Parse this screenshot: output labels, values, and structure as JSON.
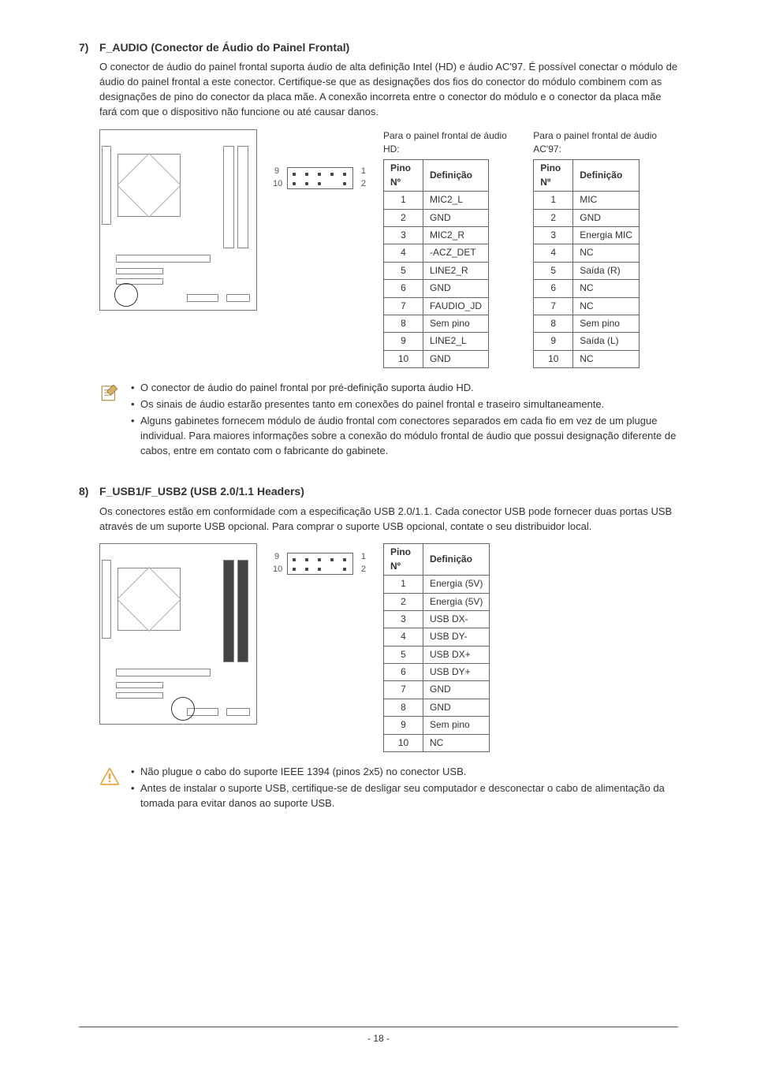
{
  "section7": {
    "number": "7)",
    "title": "F_AUDIO  (Conector de Áudio do Painel Frontal)",
    "paragraph": "O conector de áudio do painel frontal suporta áudio de alta definição Intel (HD) e áudio AC'97. É possível conectar o módulo de áudio do painel frontal a este conector. Certifique-se que as designações dos fios do conector do módulo combinem com as designações de pino do conector da placa mãe. A conexão incorreta entre o conector do módulo e o conector da placa mãe fará com que o dispositivo não funcione ou até causar danos.",
    "header_labels": {
      "tl": "9",
      "bl": "10",
      "tr": "1",
      "br": "2"
    },
    "hd_audio": {
      "title": "Para o painel frontal de áudio HD:",
      "col_pin": "Pino Nº",
      "col_def": "Definição",
      "rows": [
        [
          "1",
          "MIC2_L"
        ],
        [
          "2",
          "GND"
        ],
        [
          "3",
          "MIC2_R"
        ],
        [
          "4",
          "-ACZ_DET"
        ],
        [
          "5",
          "LINE2_R"
        ],
        [
          "6",
          "GND"
        ],
        [
          "7",
          "FAUDIO_JD"
        ],
        [
          "8",
          "Sem pino"
        ],
        [
          "9",
          "LINE2_L"
        ],
        [
          "10",
          "GND"
        ]
      ]
    },
    "ac97_audio": {
      "title": "Para o painel frontal de áudio AC'97:",
      "col_pin": "Pino Nº",
      "col_def": "Definição",
      "rows": [
        [
          "1",
          "MIC"
        ],
        [
          "2",
          "GND"
        ],
        [
          "3",
          "Energia MIC"
        ],
        [
          "4",
          "NC"
        ],
        [
          "5",
          "Saída (R)"
        ],
        [
          "6",
          "NC"
        ],
        [
          "7",
          "NC"
        ],
        [
          "8",
          "Sem pino"
        ],
        [
          "9",
          "Saída (L)"
        ],
        [
          "10",
          "NC"
        ]
      ]
    },
    "notes": [
      "O conector de áudio do painel frontal por pré-definição suporta áudio HD.",
      "Os sinais de áudio estarão presentes tanto em conexões do painel frontal e traseiro simultaneamente.",
      "Alguns gabinetes fornecem módulo de áudio frontal com conectores separados em cada fio em vez de um plugue individual. Para maiores informações sobre a conexão do módulo frontal de áudio que possui designação diferente de cabos, entre em contato com o fabricante do gabinete."
    ]
  },
  "section8": {
    "number": "8)",
    "title": "F_USB1/F_USB2 (USB 2.0/1.1 Headers)",
    "paragraph": "Os conectores estão em conformidade com a especificação USB 2.0/1.1. Cada conector USB pode fornecer duas portas USB através de um suporte USB opcional. Para comprar o suporte USB opcional, contate o seu distribuidor local.",
    "header_labels": {
      "tl": "9",
      "bl": "10",
      "tr": "1",
      "br": "2"
    },
    "table": {
      "col_pin": "Pino Nº",
      "col_def": "Definição",
      "rows": [
        [
          "1",
          "Energia (5V)"
        ],
        [
          "2",
          "Energia (5V)"
        ],
        [
          "3",
          "USB DX-"
        ],
        [
          "4",
          "USB DY-"
        ],
        [
          "5",
          "USB DX+"
        ],
        [
          "6",
          "USB DY+"
        ],
        [
          "7",
          "GND"
        ],
        [
          "8",
          "GND"
        ],
        [
          "9",
          "Sem pino"
        ],
        [
          "10",
          "NC"
        ]
      ]
    },
    "notes": [
      "Não plugue o cabo do suporte IEEE 1394 (pinos 2x5) no conector USB.",
      "Antes de instalar o suporte USB, certifique-se de desligar seu computador e desconectar o cabo de alimentação da tomada para evitar danos ao suporte USB."
    ]
  },
  "footer": {
    "page": "- 18 -"
  },
  "colors": {
    "text": "#333333",
    "border": "#666666",
    "diagram": "#888888",
    "warning": "#e8a33d",
    "note_tint": "#c7a567"
  }
}
